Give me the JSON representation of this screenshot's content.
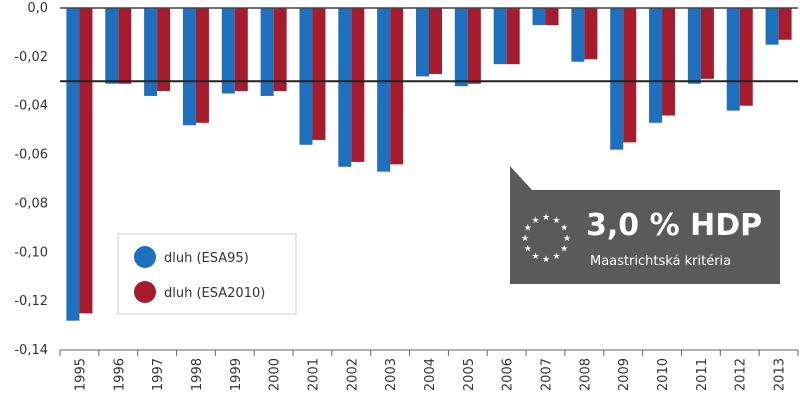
{
  "chart_data": {
    "type": "bar",
    "categories": [
      "1995",
      "1996",
      "1997",
      "1998",
      "1999",
      "2000",
      "2001",
      "2002",
      "2003",
      "2004",
      "2005",
      "2006",
      "2007",
      "2008",
      "2009",
      "2010",
      "2011",
      "2012",
      "2013"
    ],
    "series": [
      {
        "name": "dluh (ESA95)",
        "color": "#1f6fbf",
        "values": [
          -0.128,
          -0.031,
          -0.036,
          -0.048,
          -0.035,
          -0.036,
          -0.056,
          -0.065,
          -0.067,
          -0.028,
          -0.032,
          -0.023,
          -0.007,
          -0.022,
          -0.058,
          -0.047,
          -0.031,
          -0.042,
          -0.015
        ]
      },
      {
        "name": "dluh (ESA2010)",
        "color": "#a51c2e",
        "values": [
          -0.125,
          -0.031,
          -0.034,
          -0.047,
          -0.034,
          -0.034,
          -0.054,
          -0.063,
          -0.064,
          -0.027,
          -0.031,
          -0.023,
          -0.007,
          -0.021,
          -0.055,
          -0.044,
          -0.029,
          -0.04,
          -0.013
        ]
      }
    ],
    "ylim": [
      -0.14,
      0.0
    ],
    "yticks": [
      0.0,
      -0.02,
      -0.04,
      -0.06,
      -0.08,
      -0.1,
      -0.12,
      -0.14
    ],
    "ytick_labels": [
      "0,0",
      "-0,02",
      "-0,04",
      "-0,06",
      "-0,08",
      "-0,10",
      "-0,12",
      "-0,14"
    ],
    "reference_line": -0.03,
    "legend_position": "bottom-left",
    "grid": false
  },
  "callout": {
    "title": "3,0 % HDP",
    "subtitle": "Maastrichtská kritéria",
    "icon": "eu-stars-icon",
    "background": "#5a5a5a"
  }
}
